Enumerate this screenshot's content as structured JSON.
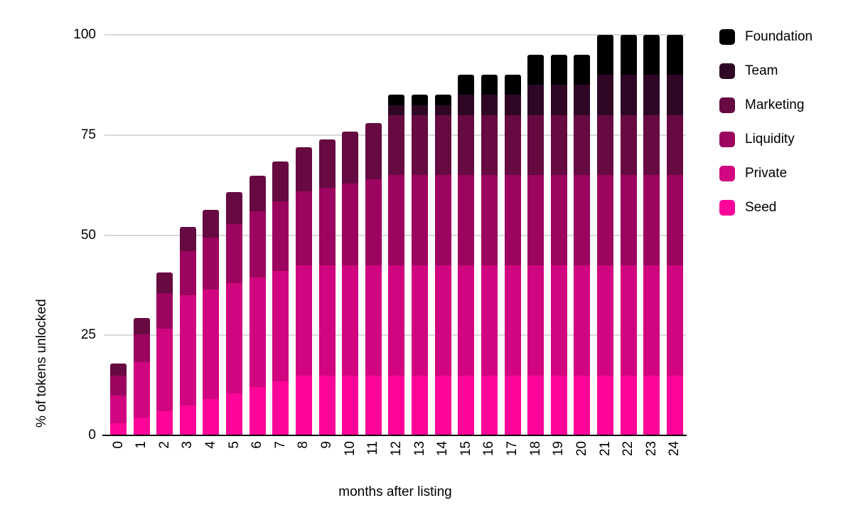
{
  "chart_data": {
    "type": "bar",
    "stacked": true,
    "xlabel": "months after listing",
    "ylabel": "% of tokens unlocked",
    "x": [
      0,
      1,
      2,
      3,
      4,
      5,
      6,
      7,
      8,
      9,
      10,
      11,
      12,
      13,
      14,
      15,
      16,
      17,
      18,
      19,
      20,
      21,
      22,
      23,
      24
    ],
    "ylim": [
      0,
      100
    ],
    "yticks": [
      0,
      25,
      50,
      75,
      100
    ],
    "grid": true,
    "legend_position": "right",
    "legend_order_top_down": [
      "Foundation",
      "Team",
      "Marketing",
      "Liquidity",
      "Private",
      "Seed"
    ],
    "series": [
      {
        "name": "Seed",
        "color": "#fd0599",
        "values": [
          3,
          4.5,
          6,
          7.5,
          9,
          10.5,
          12,
          13.5,
          15,
          15,
          15,
          15,
          15,
          15,
          15,
          15,
          15,
          15,
          15,
          15,
          15,
          15,
          15,
          15,
          15
        ]
      },
      {
        "name": "Private",
        "color": "#d1057f",
        "values": [
          7,
          13.8,
          20.6,
          27.5,
          27.5,
          27.5,
          27.5,
          27.5,
          27.5,
          27.5,
          27.5,
          27.5,
          27.5,
          27.5,
          27.5,
          27.5,
          27.5,
          27.5,
          27.5,
          27.5,
          27.5,
          27.5,
          27.5,
          27.5,
          27.5
        ]
      },
      {
        "name": "Liquidity",
        "color": "#9c045f",
        "values": [
          5,
          7,
          9,
          11,
          12.9,
          14.8,
          16.4,
          17.4,
          18.4,
          19.4,
          20.4,
          21.5,
          22.5,
          22.5,
          22.5,
          22.5,
          22.5,
          22.5,
          22.5,
          22.5,
          22.5,
          22.5,
          22.5,
          22.5,
          22.5
        ]
      },
      {
        "name": "Marketing",
        "color": "#660a41",
        "values": [
          3,
          4,
          5,
          6,
          7,
          8,
          9,
          10,
          11,
          12,
          13,
          14,
          15,
          15,
          15,
          15,
          15,
          15,
          15,
          15,
          15,
          15,
          15,
          15,
          15
        ]
      },
      {
        "name": "Team",
        "color": "#2f0725",
        "values": [
          0,
          0,
          0,
          0,
          0,
          0,
          0,
          0,
          0,
          0,
          0,
          0,
          2.5,
          2.5,
          2.5,
          5,
          5,
          5,
          7.5,
          7.5,
          7.5,
          10,
          10,
          10,
          10
        ]
      },
      {
        "name": "Foundation",
        "color": "#000000",
        "values": [
          0,
          0,
          0,
          0,
          0,
          0,
          0,
          0,
          0,
          0,
          0,
          0,
          2.5,
          2.5,
          2.5,
          5,
          5,
          5,
          7.5,
          7.5,
          7.5,
          10,
          10,
          10,
          10
        ]
      }
    ],
    "totals": [
      18,
      29.3,
      40.6,
      52,
      56.4,
      60.8,
      64.9,
      68.4,
      71.9,
      73.9,
      75.9,
      78,
      85,
      85,
      85,
      90,
      90,
      90,
      95,
      95,
      95,
      100,
      100,
      100,
      100
    ]
  },
  "axes": {
    "x_title": "months after listing",
    "y_title": "% of tokens unlocked"
  },
  "colors": {
    "background": "#ffffff",
    "gridline": "#d9d9d9",
    "axis_line": "#000000",
    "text": "#000000"
  }
}
